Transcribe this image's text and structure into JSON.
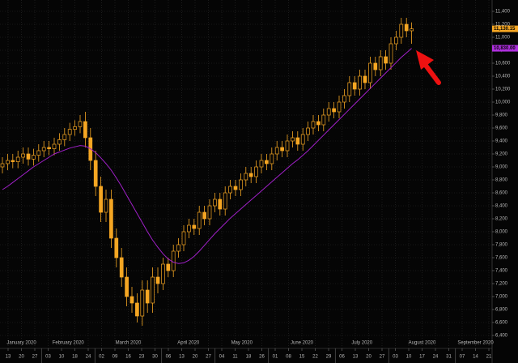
{
  "chart_data": {
    "type": "candlestick",
    "ylim": [
      6400,
      11500
    ],
    "yticks": [
      {
        "value": 6400,
        "label": "6,400"
      },
      {
        "value": 6600,
        "label": "6,600"
      },
      {
        "value": 6800,
        "label": "6,800"
      },
      {
        "value": 7000,
        "label": "7,000"
      },
      {
        "value": 7200,
        "label": "7,200"
      },
      {
        "value": 7400,
        "label": "7,400"
      },
      {
        "value": 7600,
        "label": "7,600"
      },
      {
        "value": 7800,
        "label": "7,800"
      },
      {
        "value": 8000,
        "label": "8,000"
      },
      {
        "value": 8200,
        "label": "8,200"
      },
      {
        "value": 8400,
        "label": "8,400"
      },
      {
        "value": 8600,
        "label": "8,600"
      },
      {
        "value": 8800,
        "label": "8,800"
      },
      {
        "value": 9000,
        "label": "9,000"
      },
      {
        "value": 9200,
        "label": "9,200"
      },
      {
        "value": 9400,
        "label": "9,400"
      },
      {
        "value": 9600,
        "label": "9,600"
      },
      {
        "value": 9800,
        "label": "9,800"
      },
      {
        "value": 10000,
        "label": "10,000"
      },
      {
        "value": 10200,
        "label": "10,200"
      },
      {
        "value": 10400,
        "label": "10,400"
      },
      {
        "value": 10600,
        "label": "10,600"
      },
      {
        "value": 10800,
        "label": "10,800"
      },
      {
        "value": 11000,
        "label": "11,000"
      },
      {
        "value": 11200,
        "label": "11,200"
      },
      {
        "value": 11400,
        "label": "11,400"
      }
    ],
    "grid": true,
    "months": [
      {
        "label": "January 2020",
        "days": [
          "13",
          "20",
          "27"
        ]
      },
      {
        "label": "February 2020",
        "days": [
          "03",
          "10",
          "18",
          "24"
        ]
      },
      {
        "label": "March 2020",
        "days": [
          "02",
          "09",
          "16",
          "23",
          "30"
        ]
      },
      {
        "label": "April 2020",
        "days": [
          "06",
          "13",
          "20",
          "27"
        ]
      },
      {
        "label": "May 2020",
        "days": [
          "04",
          "11",
          "18",
          "26"
        ]
      },
      {
        "label": "June 2020",
        "days": [
          "01",
          "08",
          "15",
          "22",
          "29"
        ]
      },
      {
        "label": "July 2020",
        "days": [
          "06",
          "13",
          "20",
          "27"
        ]
      },
      {
        "label": "August 2020",
        "days": [
          "03",
          "10",
          "17",
          "24",
          "31"
        ]
      },
      {
        "label": "September 2020",
        "days": [
          "07",
          "14",
          "21"
        ]
      }
    ],
    "candles": {
      "color": "#f5a623",
      "open": [
        9000,
        9050,
        9100,
        9080,
        9150,
        9200,
        9120,
        9180,
        9250,
        9300,
        9280,
        9350,
        9420,
        9500,
        9580,
        9620,
        9700,
        9450,
        9100,
        8700,
        8300,
        8500,
        7900,
        7600,
        7300,
        7000,
        6900,
        6700,
        7100,
        6900,
        7300,
        7200,
        7500,
        7400,
        7700,
        7800,
        8000,
        8100,
        8050,
        8300,
        8200,
        8400,
        8500,
        8350,
        8600,
        8700,
        8650,
        8800,
        8900,
        8850,
        9000,
        9100,
        9050,
        9200,
        9300,
        9250,
        9400,
        9450,
        9350,
        9500,
        9600,
        9700,
        9650,
        9800,
        9900,
        9850,
        10000,
        10100,
        10300,
        10200,
        10400,
        10300,
        10600,
        10500,
        10700,
        10600,
        10900,
        11000,
        11200,
        11100
      ],
      "high": [
        9150,
        9200,
        9200,
        9250,
        9300,
        9300,
        9280,
        9350,
        9400,
        9400,
        9450,
        9520,
        9600,
        9680,
        9720,
        9800,
        9850,
        9600,
        9250,
        8850,
        8650,
        8650,
        8050,
        7750,
        7450,
        7150,
        7050,
        7250,
        7250,
        7450,
        7450,
        7600,
        7600,
        7800,
        7900,
        8100,
        8200,
        8200,
        8400,
        8400,
        8500,
        8600,
        8600,
        8700,
        8800,
        8800,
        8900,
        9000,
        9000,
        9100,
        9200,
        9200,
        9300,
        9400,
        9400,
        9500,
        9550,
        9550,
        9600,
        9700,
        9800,
        9800,
        9900,
        10000,
        10000,
        10100,
        10200,
        10400,
        10400,
        10500,
        10500,
        10700,
        10700,
        10800,
        10800,
        11000,
        11100,
        11300,
        11300,
        11230
      ],
      "low": [
        8900,
        8950,
        8980,
        8980,
        9050,
        9020,
        9020,
        9080,
        9150,
        9180,
        9180,
        9250,
        9320,
        9400,
        9480,
        9520,
        9300,
        8950,
        8550,
        8150,
        8150,
        7750,
        7450,
        7150,
        6850,
        6750,
        6600,
        6550,
        6750,
        6750,
        7050,
        7100,
        7300,
        7300,
        7600,
        7700,
        7900,
        7950,
        7950,
        8100,
        8100,
        8300,
        8250,
        8250,
        8500,
        8550,
        8550,
        8700,
        8750,
        8750,
        8900,
        8950,
        8950,
        9100,
        9150,
        9150,
        9300,
        9250,
        9250,
        9400,
        9500,
        9550,
        9550,
        9700,
        9750,
        9750,
        9900,
        10000,
        10100,
        10100,
        10200,
        10200,
        10400,
        10400,
        10500,
        10500,
        10800,
        10900,
        11000,
        10900
      ],
      "close": [
        9050,
        9100,
        9080,
        9150,
        9200,
        9120,
        9180,
        9250,
        9300,
        9280,
        9350,
        9420,
        9500,
        9580,
        9620,
        9700,
        9450,
        9100,
        8700,
        8300,
        8500,
        7900,
        7600,
        7300,
        7000,
        6900,
        6700,
        7100,
        6900,
        7300,
        7200,
        7500,
        7400,
        7700,
        7800,
        8000,
        8100,
        8050,
        8300,
        8200,
        8400,
        8500,
        8350,
        8600,
        8700,
        8650,
        8800,
        8900,
        8850,
        9000,
        9100,
        9050,
        9200,
        9300,
        9250,
        9400,
        9450,
        9350,
        9500,
        9600,
        9700,
        9650,
        9800,
        9900,
        9850,
        10000,
        10100,
        10300,
        10200,
        10400,
        10300,
        10600,
        10500,
        10700,
        10600,
        10900,
        11000,
        11200,
        11100,
        11130
      ]
    },
    "moving_average": {
      "color": "#a020c8",
      "values": [
        8650,
        8700,
        8760,
        8820,
        8880,
        8940,
        9000,
        9050,
        9100,
        9150,
        9200,
        9230,
        9260,
        9290,
        9310,
        9330,
        9320,
        9280,
        9220,
        9140,
        9050,
        8950,
        8830,
        8700,
        8560,
        8420,
        8280,
        8140,
        8000,
        7870,
        7760,
        7660,
        7580,
        7530,
        7510,
        7520,
        7560,
        7620,
        7700,
        7790,
        7880,
        7970,
        8050,
        8130,
        8210,
        8280,
        8350,
        8420,
        8490,
        8560,
        8630,
        8700,
        8770,
        8840,
        8910,
        8980,
        9050,
        9110,
        9180,
        9250,
        9330,
        9410,
        9490,
        9570,
        9650,
        9730,
        9810,
        9890,
        9970,
        10050,
        10130,
        10210,
        10290,
        10370,
        10450,
        10530,
        10610,
        10690,
        10760,
        10830
      ]
    },
    "price_tags": [
      {
        "value": 11130.15,
        "label": "11,130.15",
        "color": "#f5a623"
      },
      {
        "value": 10830.0,
        "label": "10,830.00",
        "color": "#b030e0"
      }
    ]
  }
}
